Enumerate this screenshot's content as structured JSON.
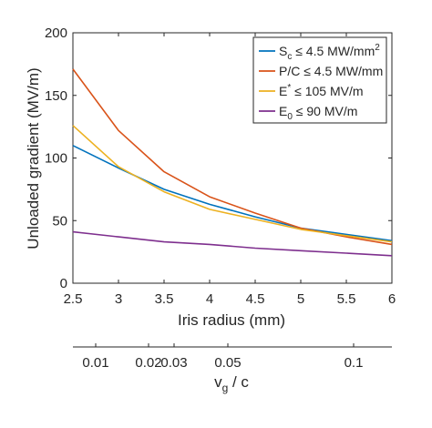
{
  "chart_data": {
    "type": "line",
    "xlabel": "Iris radius (mm)",
    "ylabel": "Unloaded gradient (MV/m)",
    "xlim": [
      2.5,
      6
    ],
    "ylim": [
      0,
      200
    ],
    "x_ticks": [
      "2.5",
      "3",
      "3.5",
      "4",
      "4.5",
      "5",
      "5.5",
      "6"
    ],
    "y_ticks": [
      "0",
      "50",
      "100",
      "150",
      "200"
    ],
    "x": [
      2.5,
      3,
      3.5,
      4,
      4.5,
      5,
      5.5,
      6
    ],
    "grid": false,
    "legend_position": "top-right",
    "series": [
      {
        "legend": [
          "S",
          "c",
          " ≤ 4.5 MW/mm",
          "2"
        ],
        "color": "#0072BD",
        "values": [
          110,
          92,
          75,
          63,
          53,
          44,
          39,
          34
        ]
      },
      {
        "legend": [
          "P/C ≤ 4.5 MW/mm",
          "",
          "",
          ""
        ],
        "color": "#D95319",
        "values": [
          171,
          122,
          89,
          69,
          56,
          44,
          37,
          31
        ]
      },
      {
        "legend": [
          "E",
          "",
          " ≤ 105 MV/m",
          "*"
        ],
        "color": "#EDB120",
        "values": [
          126,
          93,
          73,
          59,
          51,
          43,
          38,
          33
        ]
      },
      {
        "legend": [
          "E",
          "0",
          " ≤ 90 MV/m",
          ""
        ],
        "color": "#7E2F8E",
        "values": [
          41,
          37,
          33,
          31,
          28,
          26,
          24,
          22
        ]
      }
    ],
    "secondary_axis": {
      "label_main": "v",
      "label_sub": "g",
      "label_rest": " / c",
      "ticks": [
        {
          "value": "0.01",
          "iris_radius": 2.75
        },
        {
          "value": "0.02",
          "iris_radius": 3.33
        },
        {
          "value": "0.03",
          "iris_radius": 3.61
        },
        {
          "value": "0.05",
          "iris_radius": 4.2
        },
        {
          "value": "0.1",
          "iris_radius": 5.58
        }
      ]
    }
  }
}
